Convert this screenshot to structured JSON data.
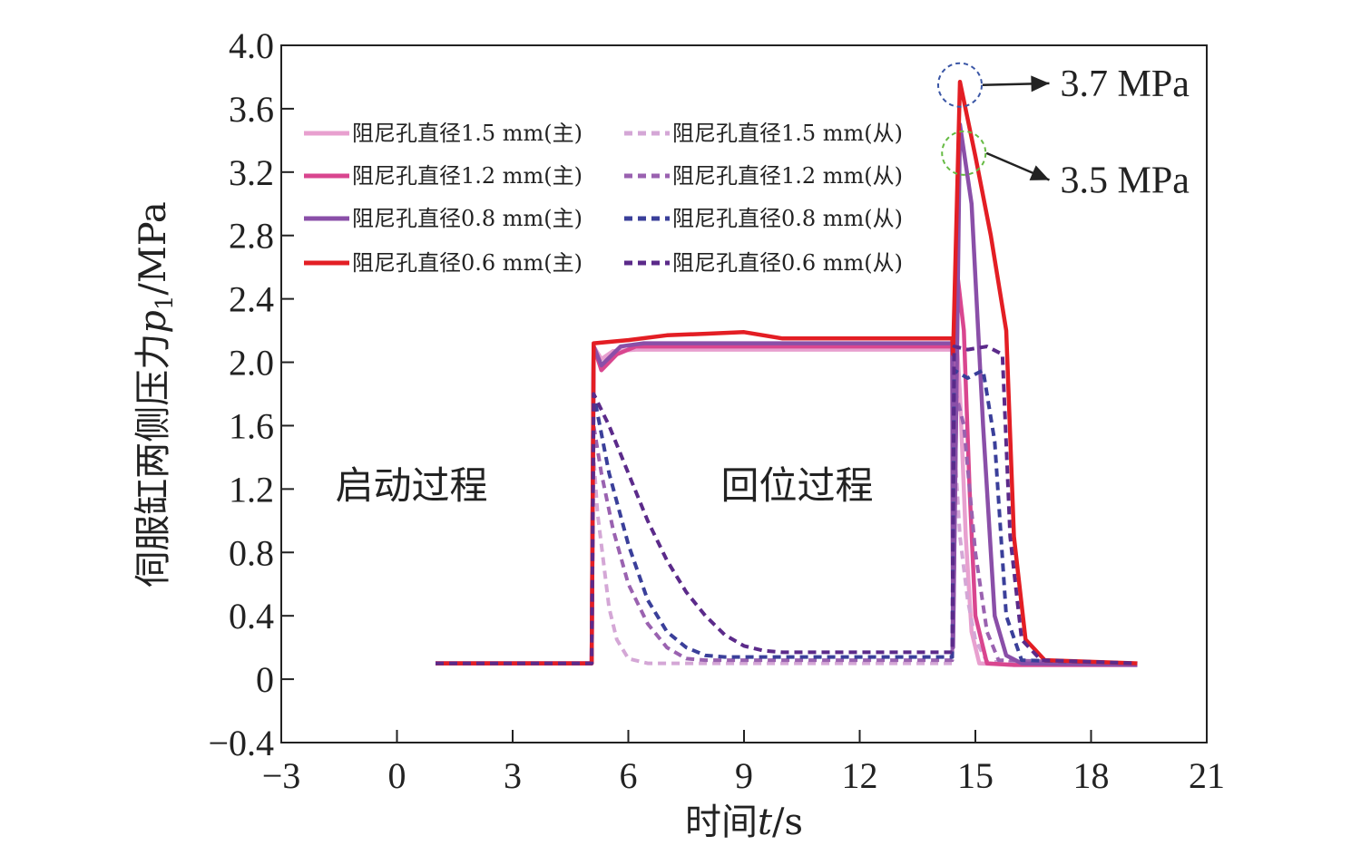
{
  "chart_data": {
    "type": "line",
    "xlabel_prefix": "时间",
    "xlabel_var": "t",
    "xlabel_suffix": "/s",
    "ylabel_prefix": "伺服缸两侧压力",
    "ylabel_var": "p",
    "ylabel_sub": "1",
    "ylabel_suffix": "/MPa",
    "xlim": [
      -3,
      21
    ],
    "ylim": [
      -0.4,
      4.0
    ],
    "xticks": [
      -3,
      0,
      3,
      6,
      9,
      12,
      15,
      18,
      21
    ],
    "xtick_labels": [
      "−3",
      "0",
      "3",
      "6",
      "9",
      "12",
      "15",
      "18",
      "21"
    ],
    "yticks": [
      -0.4,
      0,
      0.4,
      0.8,
      1.2,
      1.6,
      2.0,
      2.4,
      2.8,
      3.2,
      3.6,
      4.0
    ],
    "ytick_labels": [
      "−0.4",
      "0",
      "0.4",
      "0.8",
      "1.2",
      "1.6",
      "2.0",
      "2.4",
      "2.8",
      "3.2",
      "3.6",
      "4.0"
    ],
    "grid": false,
    "legend_position": "top-left",
    "region_labels": [
      {
        "text": "启动过程",
        "x": -1.6,
        "y": 1.22
      },
      {
        "text": "回位过程",
        "x": 8.4,
        "y": 1.22
      }
    ],
    "annotations": [
      {
        "text": "3.7 MPa",
        "x": 14.6,
        "y": 3.75,
        "circle_color": "#3a56a6",
        "label_x": 17.2,
        "label_y": 3.68
      },
      {
        "text": "3.5 MPa",
        "x": 14.7,
        "y": 3.32,
        "circle_color": "#66bb44",
        "label_x": 17.2,
        "label_y": 3.07
      }
    ],
    "series": [
      {
        "name": "阻尼孔直径1.5 mm(主)",
        "color": "#e8a0cf",
        "dashed": false,
        "x": [
          1,
          5.05,
          5.1,
          5.3,
          5.6,
          6.2,
          8,
          10,
          12,
          14.4,
          14.45,
          14.5,
          14.6,
          14.75,
          14.9,
          15.1,
          16,
          19.2
        ],
        "y": [
          0.1,
          0.1,
          2.1,
          2.02,
          2.07,
          2.08,
          2.08,
          2.08,
          2.08,
          2.08,
          1.9,
          2.2,
          1.8,
          0.9,
          0.3,
          0.1,
          0.09,
          0.09
        ]
      },
      {
        "name": "阻尼孔直径1.5 mm(从)",
        "color": "#d4a7d6",
        "dashed": true,
        "x": [
          1,
          5.05,
          5.1,
          5.2,
          5.35,
          5.5,
          5.7,
          6.0,
          6.5,
          8,
          12,
          14.4,
          14.45,
          14.6,
          14.8,
          15.0,
          15.3,
          19.2
        ],
        "y": [
          0.1,
          0.1,
          1.4,
          1.05,
          0.75,
          0.45,
          0.25,
          0.13,
          0.1,
          0.1,
          0.1,
          0.1,
          1.5,
          0.9,
          0.5,
          0.25,
          0.11,
          0.1
        ]
      },
      {
        "name": "阻尼孔直径1.2 mm(主)",
        "color": "#d9468f",
        "dashed": false,
        "x": [
          1,
          5.05,
          5.1,
          5.3,
          5.7,
          6.2,
          8,
          10,
          12,
          14.4,
          14.42,
          14.55,
          14.7,
          14.85,
          15.0,
          15.3,
          16,
          19.2
        ],
        "y": [
          0.1,
          0.1,
          2.1,
          1.95,
          2.05,
          2.1,
          2.1,
          2.1,
          2.1,
          2.1,
          0.3,
          2.52,
          2.2,
          1.2,
          0.4,
          0.1,
          0.09,
          0.09
        ]
      },
      {
        "name": "阻尼孔直径1.2 mm(从)",
        "color": "#9a62b0",
        "dashed": true,
        "x": [
          1,
          5.05,
          5.1,
          5.3,
          5.6,
          6.0,
          6.5,
          7.0,
          7.5,
          8,
          10,
          12,
          14.4,
          14.45,
          14.7,
          15.0,
          15.3,
          15.6,
          19.2
        ],
        "y": [
          0.1,
          0.1,
          1.6,
          1.3,
          0.95,
          0.6,
          0.35,
          0.2,
          0.13,
          0.12,
          0.12,
          0.12,
          0.12,
          1.85,
          1.6,
          0.8,
          0.3,
          0.12,
          0.1
        ]
      },
      {
        "name": "阻尼孔直径0.8 mm(主)",
        "color": "#8a4fa8",
        "dashed": false,
        "x": [
          1,
          5.05,
          5.1,
          5.3,
          5.8,
          6.4,
          8,
          10,
          12,
          14.4,
          14.42,
          14.6,
          14.9,
          15.2,
          15.5,
          15.8,
          16.2,
          19.2
        ],
        "y": [
          0.1,
          0.1,
          2.1,
          1.98,
          2.1,
          2.12,
          2.12,
          2.12,
          2.12,
          2.12,
          0.2,
          3.5,
          3.0,
          1.6,
          0.4,
          0.15,
          0.1,
          0.09
        ]
      },
      {
        "name": "阻尼孔直径0.8 mm(从)",
        "color": "#3a3f9a",
        "dashed": true,
        "x": [
          1,
          5.05,
          5.1,
          5.5,
          6.0,
          6.5,
          7.0,
          7.5,
          8.0,
          8.5,
          10,
          12,
          14.4,
          14.45,
          14.8,
          15.2,
          15.5,
          15.8,
          16.2,
          19.2
        ],
        "y": [
          0.1,
          0.1,
          1.8,
          1.3,
          0.85,
          0.5,
          0.3,
          0.2,
          0.15,
          0.14,
          0.14,
          0.14,
          0.14,
          1.95,
          1.9,
          1.95,
          1.5,
          0.4,
          0.12,
          0.1
        ]
      },
      {
        "name": "阻尼孔直径0.6 mm(主)",
        "color": "#e31e24",
        "dashed": false,
        "x": [
          1,
          5.05,
          5.1,
          6,
          7,
          8,
          9,
          10,
          12,
          14.4,
          14.42,
          14.6,
          15.0,
          15.4,
          15.8,
          16.0,
          16.3,
          16.8,
          19.2
        ],
        "y": [
          0.1,
          0.1,
          2.12,
          2.14,
          2.17,
          2.18,
          2.19,
          2.15,
          2.15,
          2.15,
          2.05,
          3.77,
          3.3,
          2.8,
          2.2,
          0.9,
          0.25,
          0.12,
          0.1
        ]
      },
      {
        "name": "阻尼孔直径0.6 mm(从)",
        "color": "#5b2a8a",
        "dashed": true,
        "x": [
          1,
          5.05,
          5.1,
          5.5,
          6.0,
          6.5,
          7.0,
          7.5,
          8.0,
          8.5,
          9.0,
          9.5,
          10.0,
          12,
          14.4,
          14.45,
          14.8,
          15.3,
          15.7,
          15.9,
          16.2,
          16.7,
          19.2
        ],
        "y": [
          0.1,
          0.1,
          1.8,
          1.6,
          1.3,
          1.0,
          0.75,
          0.55,
          0.4,
          0.28,
          0.21,
          0.18,
          0.17,
          0.17,
          0.17,
          2.1,
          2.08,
          2.1,
          2.05,
          0.9,
          0.25,
          0.12,
          0.1
        ]
      }
    ]
  }
}
